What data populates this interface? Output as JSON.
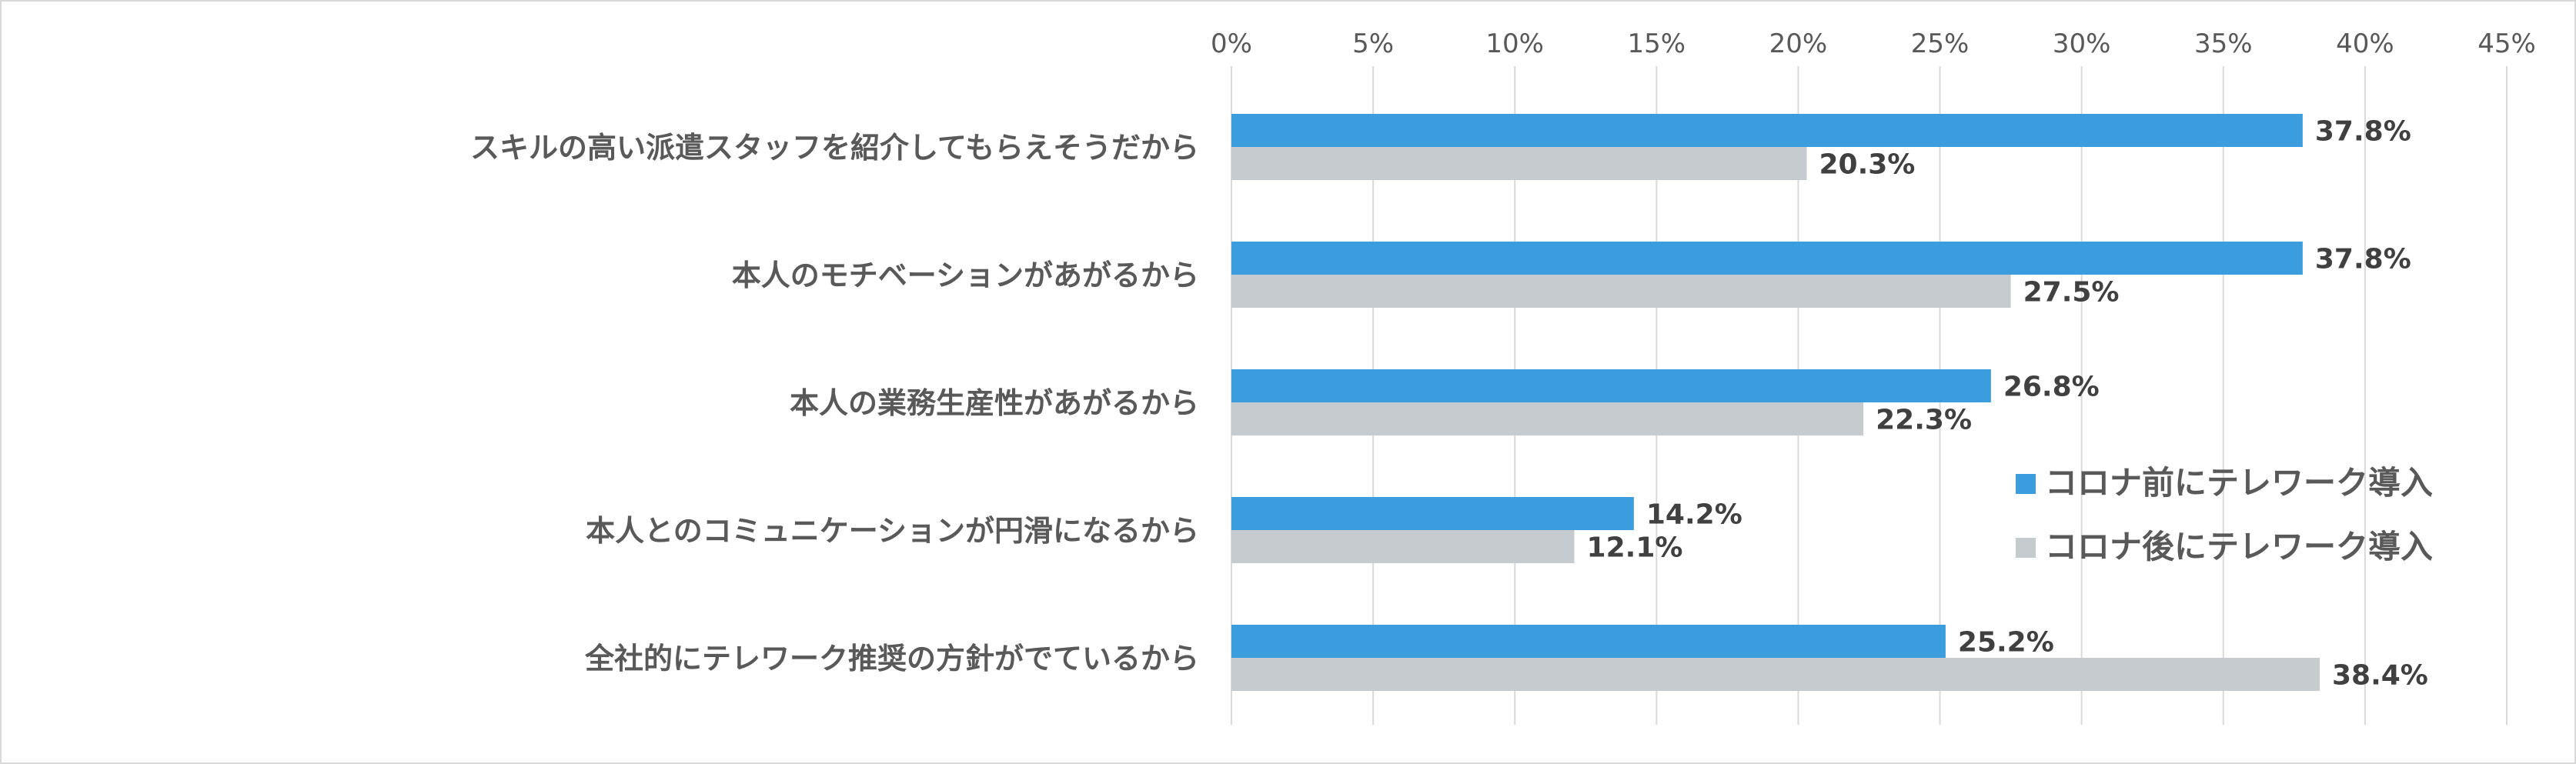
{
  "chart_data": {
    "type": "bar",
    "orientation": "horizontal",
    "categories": [
      "スキルの高い派遣スタッフを紹介してもらえそうだから",
      "本人のモチベーションがあがるから",
      "本人の業務生産性があがるから",
      "本人とのコミュニケーションが円滑になるから",
      "全社的にテレワーク推奨の方針がでているから"
    ],
    "series": [
      {
        "name": "コロナ前にテレワーク導入",
        "values": [
          37.8,
          37.8,
          26.8,
          14.2,
          25.2
        ],
        "labels": [
          "37.8%",
          "37.8%",
          "26.8%",
          "14.2%",
          "25.2%"
        ],
        "color": "#3b9ddd"
      },
      {
        "name": "コロナ後にテレワーク導入",
        "values": [
          20.3,
          27.5,
          22.3,
          12.1,
          38.4
        ],
        "labels": [
          "20.3%",
          "27.5%",
          "22.3%",
          "12.1%",
          "38.4%"
        ],
        "color": "#c5cbcf"
      }
    ],
    "xlim": [
      0,
      45
    ],
    "xticks": [
      0,
      5,
      10,
      15,
      20,
      25,
      30,
      35,
      40,
      45
    ],
    "xtick_labels": [
      "0%",
      "5%",
      "10%",
      "15%",
      "20%",
      "25%",
      "30%",
      "35%",
      "40%",
      "45%"
    ],
    "xaxis_position": "top",
    "grid": true,
    "legend_position": "right",
    "title": "",
    "xlabel": "",
    "ylabel": ""
  }
}
